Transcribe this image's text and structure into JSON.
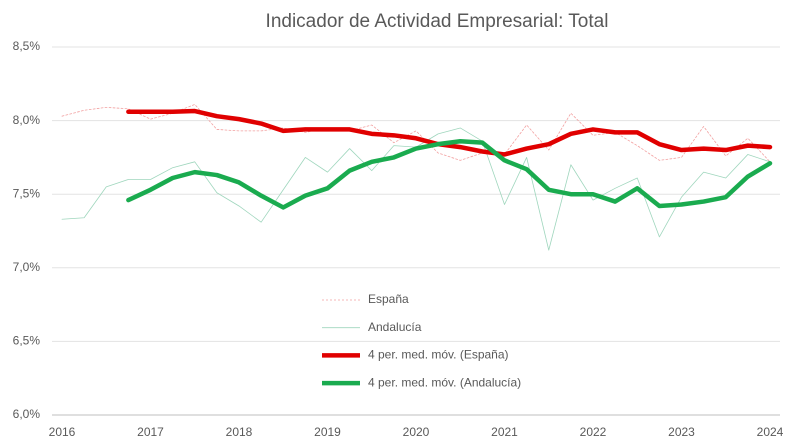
{
  "chart_data": {
    "type": "line",
    "title": "Indicador de Actividad Empresarial: Total",
    "categories": [
      "2016",
      null,
      null,
      null,
      "2017",
      null,
      null,
      null,
      "2018",
      null,
      null,
      null,
      "2019",
      null,
      null,
      null,
      "2020",
      null,
      null,
      null,
      "2021",
      null,
      null,
      null,
      "2022",
      null,
      null,
      null,
      "2023",
      null,
      null,
      null,
      "2024"
    ],
    "series": [
      {
        "name": "España",
        "color": "#f2a0a0",
        "line_width": 0.8,
        "dashed": true,
        "values": [
          8.03,
          8.07,
          8.09,
          8.08,
          8.01,
          8.05,
          8.11,
          7.94,
          7.93,
          7.93,
          7.95,
          7.92,
          7.95,
          7.93,
          7.97,
          7.85,
          7.93,
          7.78,
          7.73,
          7.78,
          7.77,
          7.97,
          7.8,
          8.05,
          7.9,
          7.92,
          7.83,
          7.73,
          7.75,
          7.96,
          7.76,
          7.88,
          7.72
        ]
      },
      {
        "name": "Andalucía",
        "color": "#9fd6bd",
        "line_width": 0.8,
        "dashed": false,
        "values": [
          7.33,
          7.34,
          7.55,
          7.6,
          7.6,
          7.68,
          7.72,
          7.51,
          7.42,
          7.31,
          7.53,
          7.75,
          7.65,
          7.81,
          7.66,
          7.83,
          7.82,
          7.91,
          7.95,
          7.86,
          7.43,
          7.75,
          7.12,
          7.7,
          7.46,
          7.54,
          7.61,
          7.21,
          7.48,
          7.65,
          7.61,
          7.77,
          7.72
        ]
      },
      {
        "name": "4 per. med. móv. (España)",
        "color": "#e00000",
        "line_width": 4.5,
        "dashed": false,
        "values": [
          null,
          null,
          null,
          8.06,
          8.06,
          8.06,
          8.065,
          8.03,
          8.01,
          7.98,
          7.93,
          7.94,
          7.94,
          7.94,
          7.91,
          7.9,
          7.88,
          7.84,
          7.82,
          7.79,
          7.77,
          7.81,
          7.84,
          7.91,
          7.94,
          7.92,
          7.92,
          7.84,
          7.8,
          7.81,
          7.8,
          7.83,
          7.82
        ]
      },
      {
        "name": "4 per. med. móv. (Andalucía)",
        "color": "#1aab4f",
        "line_width": 4.5,
        "dashed": false,
        "values": [
          null,
          null,
          null,
          7.46,
          7.53,
          7.61,
          7.65,
          7.63,
          7.58,
          7.49,
          7.41,
          7.49,
          7.54,
          7.66,
          7.72,
          7.75,
          7.81,
          7.84,
          7.86,
          7.85,
          7.73,
          7.67,
          7.53,
          7.5,
          7.5,
          7.45,
          7.54,
          7.42,
          7.43,
          7.45,
          7.48,
          7.62,
          7.71
        ]
      }
    ],
    "ylim": [
      6.0,
      8.5
    ],
    "yticks": [
      {
        "value": 6.0,
        "label": "6,0%"
      },
      {
        "value": 6.5,
        "label": "6,5%"
      },
      {
        "value": 7.0,
        "label": "7,0%"
      },
      {
        "value": 7.5,
        "label": "7,5%"
      },
      {
        "value": 8.0,
        "label": "8,0%"
      },
      {
        "value": 8.5,
        "label": "8,5%"
      }
    ],
    "grid": true
  }
}
